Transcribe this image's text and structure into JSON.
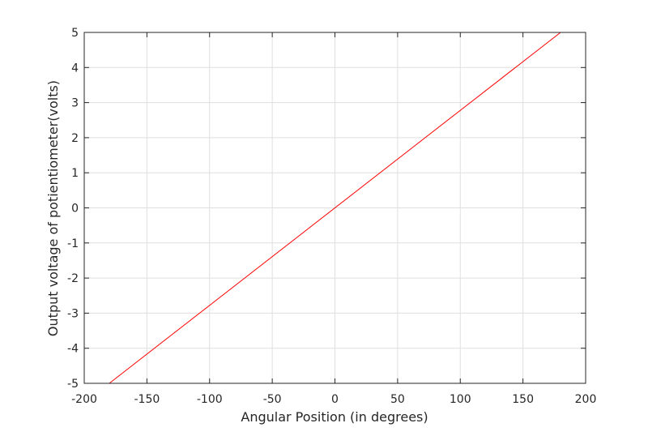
{
  "chart_data": {
    "type": "line",
    "title": "",
    "xlabel": "Angular Position (in degrees)",
    "ylabel": "Output voltage of potientiometer(volts)",
    "xlim": [
      -200,
      200
    ],
    "ylim": [
      -5,
      5
    ],
    "xticks": [
      -200,
      -150,
      -100,
      -50,
      0,
      50,
      100,
      150,
      200
    ],
    "yticks": [
      -5,
      -4,
      -3,
      -2,
      -1,
      0,
      1,
      2,
      3,
      4,
      5
    ],
    "xtick_labels": [
      "-200",
      "-150",
      "-100",
      "-50",
      "0",
      "50",
      "100",
      "150",
      "200"
    ],
    "ytick_labels": [
      "-5",
      "-4",
      "-3",
      "-2",
      "-1",
      "0",
      "1",
      "2",
      "3",
      "4",
      "5"
    ],
    "grid": true,
    "legend": "none",
    "series": [
      {
        "color": "#ff0000",
        "x": [
          -180,
          180
        ],
        "y": [
          -5,
          5
        ]
      }
    ]
  }
}
